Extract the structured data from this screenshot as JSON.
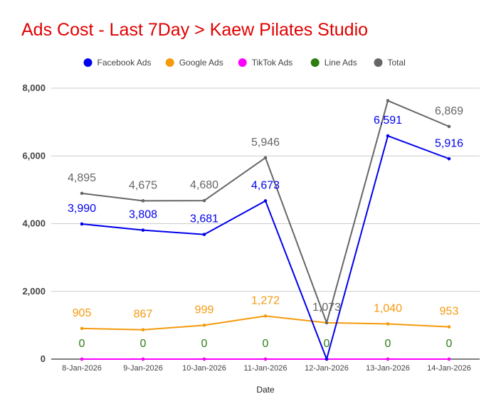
{
  "chart_data": {
    "type": "line",
    "title": "Ads Cost - Last 7Day > Kaew Pilates Studio",
    "xlabel": "Date",
    "ylabel": "",
    "categories": [
      "8-Jan-2026",
      "9-Jan-2026",
      "10-Jan-2026",
      "11-Jan-2026",
      "12-Jan-2026",
      "13-Jan-2026",
      "14-Jan-2026"
    ],
    "ylim": [
      0,
      8000
    ],
    "yticks": [
      0,
      2000,
      4000,
      6000,
      8000
    ],
    "ytick_labels": [
      "0",
      "2,000",
      "4,000",
      "6,000",
      "8,000"
    ],
    "grid": true,
    "legend_position": "top",
    "series": [
      {
        "name": "Facebook Ads",
        "color": "#0000ee",
        "values": [
          3990,
          3808,
          3681,
          4673,
          0,
          6591,
          5916
        ],
        "labels": [
          "3,990",
          "3,808",
          "3,681",
          "4,673",
          "",
          "6,591",
          "5,916"
        ]
      },
      {
        "name": "Google Ads",
        "color": "#f59a0b",
        "values": [
          905,
          867,
          999,
          1272,
          1073,
          1040,
          953
        ],
        "labels": [
          "905",
          "867",
          "999",
          "1,272",
          "",
          "1,040",
          "953"
        ]
      },
      {
        "name": "TikTok Ads",
        "color": "#ff00ff",
        "values": [
          0,
          0,
          0,
          0,
          0,
          0,
          0
        ],
        "labels": [
          "",
          "",
          "",
          "",
          "",
          "",
          ""
        ]
      },
      {
        "name": "Line Ads",
        "color": "#2e7d12",
        "values": [
          0,
          0,
          0,
          0,
          0,
          0,
          0
        ],
        "labels": [
          "0",
          "0",
          "0",
          "0",
          "0",
          "0",
          "0"
        ]
      },
      {
        "name": "Total",
        "color": "#666666",
        "values": [
          4895,
          4675,
          4680,
          5946,
          1073,
          7631,
          6869
        ],
        "labels": [
          "4,895",
          "4,675",
          "4,680",
          "5,946",
          "1,073",
          "",
          "6,869"
        ]
      }
    ]
  }
}
